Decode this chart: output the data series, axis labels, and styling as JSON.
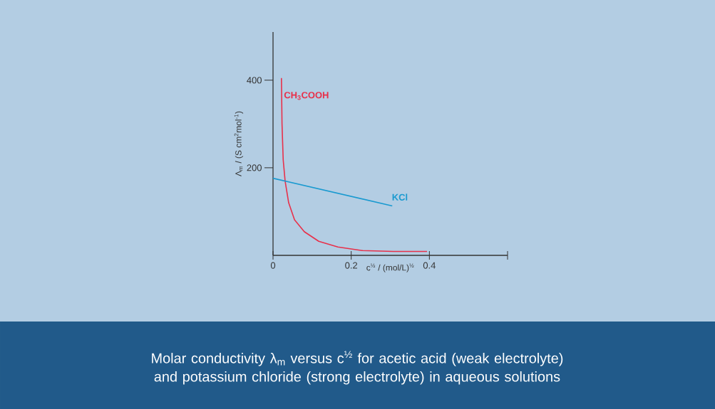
{
  "chart_data": {
    "type": "line",
    "xlabel": "c$^{½}$ / (mol/L)$^{½}$",
    "ylabel": "Λ$_{m}$ / (S cm$^{2}$mol$^{-1}$)",
    "xlim": [
      0,
      0.6
    ],
    "ylim": [
      0,
      510
    ],
    "xticks": [
      0,
      0.2,
      0.4,
      {
        "value": 0.6,
        "label": null
      }
    ],
    "yticks": [
      200,
      400
    ],
    "marker": "none",
    "line_style": "solid",
    "series": [
      {
        "name": "CH$_{3}$COOH",
        "color": "#e8304a",
        "x": [
          0.0215,
          0.023,
          0.026,
          0.031,
          0.04,
          0.055,
          0.08,
          0.117,
          0.166,
          0.228,
          0.308,
          0.394
        ],
        "values": [
          405,
          300,
          218,
          169,
          120,
          81,
          54,
          32,
          19,
          11,
          9,
          9
        ]
      },
      {
        "name": "KCl",
        "color": "#1a9ad0",
        "x": [
          0,
          0.305
        ],
        "values": [
          176,
          113
        ]
      }
    ],
    "annotations": [
      "Molar conductivity λ$_{m}$ versus c$^{½}$ for acetic acid (weak electrolyte) and potassium chloride (strong electrolyte) in aqueous solutions"
    ]
  }
}
